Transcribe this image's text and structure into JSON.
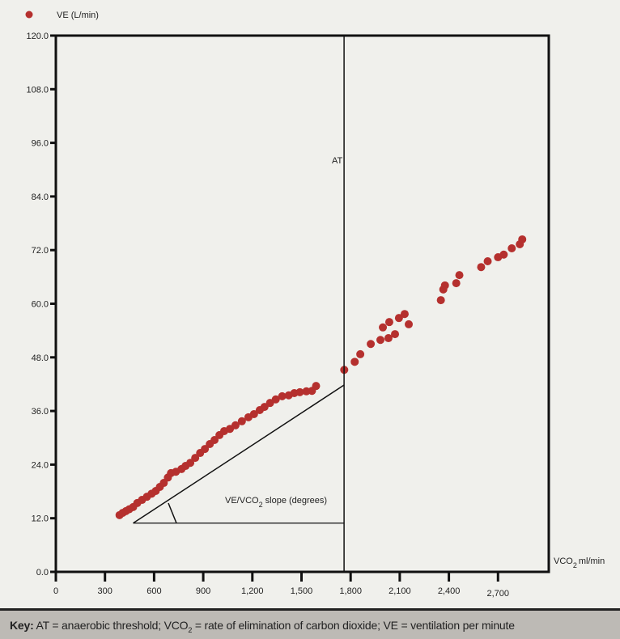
{
  "chart_data": {
    "type": "scatter",
    "legend": {
      "label": "VE (L/min)",
      "placement": "top-left"
    },
    "xlabel": "VCO2 ml/min",
    "xlabel_main": "VCO",
    "xlabel_sub": "2",
    "xlabel_unit": "ml/min",
    "ylabel": "",
    "xlim": [
      0,
      3010
    ],
    "ylim": [
      0,
      120
    ],
    "xticks": [
      "0",
      "300",
      "600",
      "900",
      "1,200",
      "1,500",
      "1,800",
      "2,100",
      "2,400",
      "2,700"
    ],
    "xtick_values": [
      0,
      300,
      600,
      900,
      1200,
      1500,
      1800,
      2100,
      2400,
      2700
    ],
    "yticks": [
      "0.0",
      "12.0",
      "24.0",
      "36.0",
      "48.0",
      "60.0",
      "72.0",
      "84.0",
      "96.0",
      "108.0",
      "120.0"
    ],
    "ytick_values": [
      0,
      12,
      24,
      36,
      48,
      60,
      72,
      84,
      96,
      108,
      120
    ],
    "grid": false,
    "marker_color": "#b5302e",
    "series": [
      {
        "name": "VE (L/min)",
        "points": [
          [
            389,
            12.7
          ],
          [
            408,
            13.2
          ],
          [
            428,
            13.6
          ],
          [
            448,
            14.0
          ],
          [
            472,
            14.5
          ],
          [
            497,
            15.4
          ],
          [
            526,
            16.1
          ],
          [
            556,
            16.8
          ],
          [
            585,
            17.5
          ],
          [
            610,
            18.1
          ],
          [
            635,
            19.0
          ],
          [
            659,
            19.9
          ],
          [
            684,
            21.1
          ],
          [
            703,
            22.1
          ],
          [
            733,
            22.4
          ],
          [
            767,
            23.0
          ],
          [
            792,
            23.7
          ],
          [
            821,
            24.4
          ],
          [
            851,
            25.5
          ],
          [
            881,
            26.6
          ],
          [
            910,
            27.5
          ],
          [
            940,
            28.6
          ],
          [
            969,
            29.5
          ],
          [
            999,
            30.6
          ],
          [
            1028,
            31.5
          ],
          [
            1063,
            32.0
          ],
          [
            1097,
            32.8
          ],
          [
            1136,
            33.7
          ],
          [
            1176,
            34.6
          ],
          [
            1210,
            35.3
          ],
          [
            1245,
            36.2
          ],
          [
            1274,
            36.9
          ],
          [
            1308,
            37.8
          ],
          [
            1343,
            38.6
          ],
          [
            1382,
            39.3
          ],
          [
            1422,
            39.5
          ],
          [
            1456,
            40.0
          ],
          [
            1490,
            40.2
          ],
          [
            1530,
            40.4
          ],
          [
            1564,
            40.5
          ],
          [
            1589,
            41.6
          ],
          [
            1761,
            45.2
          ],
          [
            1825,
            47.0
          ],
          [
            1859,
            48.7
          ],
          [
            1923,
            51.0
          ],
          [
            1982,
            51.9
          ],
          [
            2031,
            52.3
          ],
          [
            2071,
            53.2
          ],
          [
            1997,
            54.7
          ],
          [
            2036,
            55.9
          ],
          [
            2095,
            56.8
          ],
          [
            2130,
            57.7
          ],
          [
            2155,
            55.4
          ],
          [
            2351,
            60.8
          ],
          [
            2366,
            63.2
          ],
          [
            2376,
            64.1
          ],
          [
            2445,
            64.6
          ],
          [
            2464,
            66.4
          ],
          [
            2597,
            68.2
          ],
          [
            2637,
            69.5
          ],
          [
            2700,
            70.4
          ],
          [
            2735,
            71.0
          ],
          [
            2784,
            72.4
          ],
          [
            2833,
            73.3
          ],
          [
            2848,
            74.4
          ]
        ]
      }
    ],
    "annotations": {
      "at_line": {
        "label": "AT",
        "x": 1760
      },
      "slope_label_main": "VE/VCO",
      "slope_label_sub": "2",
      "slope_label_rest": " slope (degrees)",
      "slope_line": {
        "from": [
          472,
          10.9
        ],
        "to": [
          1760,
          41.8
        ]
      }
    }
  },
  "key": {
    "bold": "Key:",
    "text1": " AT = anaerobic threshold; VCO",
    "sub": "2",
    "text2": " = rate of elimination of carbon dioxide; VE = ventilation per minute"
  }
}
